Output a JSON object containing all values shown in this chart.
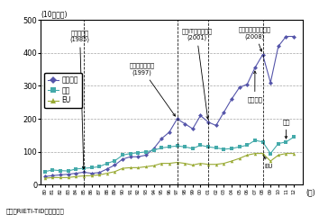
{
  "years": [
    1980,
    1981,
    1982,
    1983,
    1984,
    1985,
    1986,
    1987,
    1988,
    1989,
    1990,
    1991,
    1992,
    1993,
    1994,
    1995,
    1996,
    1997,
    1998,
    1999,
    2000,
    2001,
    2002,
    2003,
    2004,
    2005,
    2006,
    2007,
    2008,
    2009,
    2010,
    2011,
    2012
  ],
  "east_asia": [
    25,
    28,
    30,
    32,
    35,
    38,
    35,
    37,
    48,
    60,
    78,
    85,
    85,
    90,
    110,
    140,
    160,
    200,
    185,
    170,
    210,
    190,
    180,
    220,
    260,
    295,
    305,
    355,
    395,
    310,
    420,
    450,
    450
  ],
  "usa": [
    40,
    45,
    43,
    42,
    48,
    50,
    52,
    55,
    65,
    73,
    90,
    95,
    97,
    100,
    105,
    112,
    115,
    118,
    115,
    110,
    120,
    115,
    112,
    108,
    110,
    115,
    120,
    135,
    130,
    95,
    125,
    130,
    145
  ],
  "eu": [
    20,
    22,
    22,
    22,
    25,
    27,
    28,
    30,
    35,
    40,
    50,
    52,
    52,
    55,
    58,
    65,
    65,
    68,
    65,
    60,
    65,
    62,
    62,
    65,
    72,
    80,
    90,
    95,
    95,
    72,
    90,
    95,
    95
  ],
  "east_asia_color": "#5555aa",
  "usa_color": "#44aaaa",
  "eu_color": "#99aa33",
  "title_y": "(10億ドル)",
  "xlabel": "(年)",
  "ylim": [
    0,
    500
  ],
  "yticks": [
    0,
    100,
    200,
    300,
    400,
    500
  ],
  "source": "資料：RIETI-TIDから作成。",
  "legend_east_asia": "東アジア",
  "legend_usa": "米国",
  "legend_eu": "EU",
  "vlines": [
    1985,
    1997,
    2001,
    2008
  ],
  "ann_plaza_text": "プラザ合意\n(1985)",
  "ann_it_text": "米国ITバブル崩壊\n(2001)",
  "ann_lehman_text": "リーマン・ショック\n(2008)",
  "ann_asia_text": "アジア通貨危機\n(1997)",
  "label_east_asia": "東アジア",
  "label_usa": "米国",
  "label_eu": "EU"
}
